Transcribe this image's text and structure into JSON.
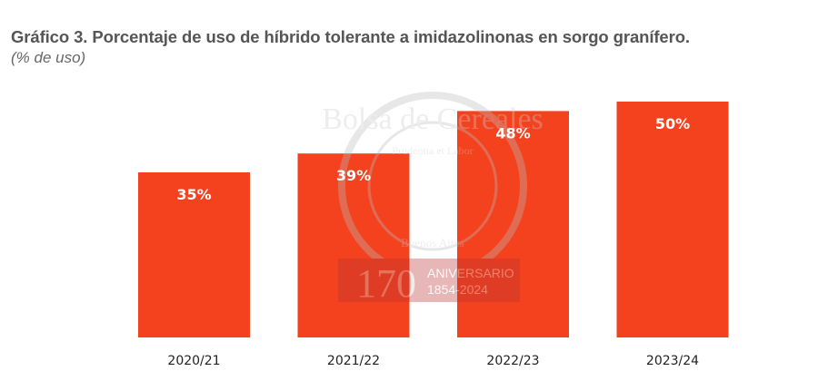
{
  "chart_data": {
    "type": "bar",
    "title": "Gráfico 3. Porcentaje de uso de híbrido tolerante a imidazolinonas en sorgo granífero.",
    "subtitle": "(% de uso)",
    "categories": [
      "2020/21",
      "2021/22",
      "2022/23",
      "2023/24"
    ],
    "values": [
      35,
      39,
      48,
      50
    ],
    "data_labels": [
      "35%",
      "39%",
      "48%",
      "50%"
    ],
    "xlabel": "",
    "ylabel": "",
    "ylim": [
      0,
      50
    ],
    "grid": false,
    "bar_color": "#f4421f"
  },
  "watermark": {
    "seal_text": "Bolsa de Cereales",
    "motto": "Prudentia et Labor",
    "city": "Buenos Aires",
    "number": "170",
    "anniversary": "ANIVERSARIO",
    "years": "1854-2024"
  }
}
